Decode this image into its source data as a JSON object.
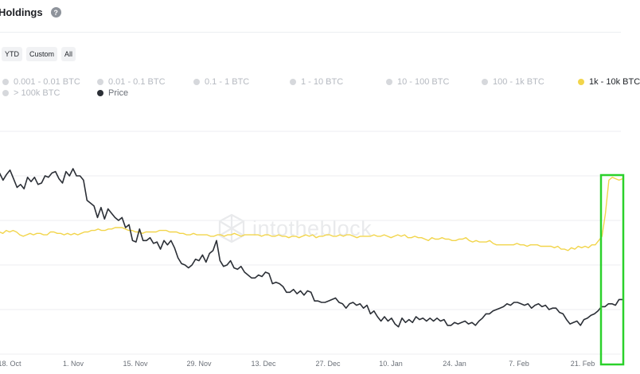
{
  "header": {
    "title": "Holdings",
    "help_icon": "question-circle-icon"
  },
  "range_buttons": [
    "YTD",
    "Custom",
    "All"
  ],
  "legend": [
    {
      "label": "0.001 - 0.01 BTC",
      "active": false,
      "color": "#d6d8dc"
    },
    {
      "label": "0.01 - 0.1 BTC",
      "active": false,
      "color": "#d6d8dc"
    },
    {
      "label": "0.1 - 1 BTC",
      "active": false,
      "color": "#d6d8dc"
    },
    {
      "label": "1 - 10 BTC",
      "active": false,
      "color": "#d6d8dc"
    },
    {
      "label": "10 - 100 BTC",
      "active": false,
      "color": "#d6d8dc"
    },
    {
      "label": "100 - 1k BTC",
      "active": false,
      "color": "#d6d8dc"
    },
    {
      "label": "1k - 10k BTC",
      "active": true,
      "color": "#f2d54b"
    },
    {
      "label": "> 100k BTC",
      "active": false,
      "color": "#d6d8dc"
    },
    {
      "label": "Price",
      "active": true,
      "color": "#2b2f36"
    }
  ],
  "watermark": "intotheblock",
  "highlight_color": "#2bd12b",
  "chart_data": {
    "type": "line",
    "x_tick_labels": [
      "18. Oct",
      "1. Nov",
      "15. Nov",
      "29. Nov",
      "13. Dec",
      "27. Dec",
      "10. Jan",
      "24. Jan",
      "7. Feb",
      "21. Feb"
    ],
    "grid": true,
    "series": [
      {
        "name": "Price",
        "color": "#2b2f36",
        "values": [
          63,
          71,
          66,
          70,
          73,
          67,
          61,
          63,
          60,
          68,
          65,
          68,
          63,
          64,
          69,
          68,
          71,
          72,
          67,
          64,
          72,
          69,
          74,
          69,
          69,
          66,
          52,
          50,
          48,
          40,
          47,
          39,
          46,
          43,
          40,
          38,
          40,
          33,
          35,
          24,
          23,
          32,
          24,
          24,
          26,
          22,
          23,
          18,
          24,
          21,
          24,
          19,
          12,
          8,
          7,
          5,
          7,
          11,
          10,
          14,
          9,
          15,
          17,
          24,
          10,
          6,
          7,
          10,
          5,
          4,
          6,
          2,
          0,
          -2,
          -2,
          0,
          -1,
          2,
          1,
          -6,
          -5,
          -6,
          -8,
          -12,
          -12,
          -10,
          -13,
          -11,
          -14,
          -11,
          -12,
          -18,
          -18,
          -19,
          -19,
          -18,
          -17,
          -16,
          -19,
          -20,
          -23,
          -20,
          -19,
          -21,
          -20,
          -23,
          -21,
          -27,
          -25,
          -29,
          -32,
          -29,
          -32,
          -30,
          -34,
          -36,
          -30,
          -33,
          -31,
          -33,
          -29,
          -31,
          -30,
          -32,
          -30,
          -32,
          -30,
          -32,
          -31,
          -35,
          -35,
          -33,
          -34,
          -33,
          -32,
          -34,
          -33,
          -35,
          -32,
          -30,
          -27,
          -27,
          -25,
          -24,
          -23,
          -22,
          -20,
          -21,
          -19,
          -19,
          -20,
          -21,
          -20,
          -23,
          -21,
          -20,
          -22,
          -21,
          -24,
          -23,
          -23,
          -26,
          -27,
          -31,
          -34,
          -33,
          -32,
          -35,
          -31,
          -30,
          -28,
          -27,
          -25,
          -22,
          -22,
          -20,
          -20,
          -21,
          -17,
          -17
        ]
      },
      {
        "name": "1k - 10k BTC",
        "color": "#f2d54b",
        "values": [
          29,
          30,
          29,
          31,
          30,
          31,
          30,
          28,
          27,
          28,
          29,
          28,
          29,
          29,
          28,
          28,
          30,
          30,
          29,
          29,
          28,
          29,
          28,
          29,
          28,
          29,
          30,
          30,
          31,
          31,
          32,
          31,
          31,
          32,
          32,
          33,
          33,
          33,
          32,
          31,
          31,
          30,
          30,
          29,
          30,
          30,
          30,
          30,
          31,
          31,
          31,
          30,
          30,
          30,
          29,
          29,
          28,
          28,
          29,
          28,
          28,
          28,
          28,
          27,
          27,
          28,
          28,
          27,
          28,
          28,
          29,
          28,
          27,
          28,
          28,
          28,
          28,
          28,
          27,
          28,
          28,
          27,
          27,
          28,
          27,
          27,
          26,
          27,
          27,
          26,
          27,
          28,
          27,
          28,
          26,
          27,
          27,
          28,
          28,
          27,
          27,
          28,
          27,
          28,
          28,
          27,
          26,
          27,
          27,
          27,
          27,
          28,
          27,
          27,
          28,
          27,
          26,
          27,
          28,
          27,
          28,
          26,
          26,
          27,
          26,
          26,
          25,
          24,
          26,
          25,
          25,
          26,
          25,
          25,
          24,
          24,
          25,
          25,
          26,
          24,
          23,
          24,
          23,
          23,
          23,
          24,
          22,
          21,
          21,
          21,
          21,
          21,
          21,
          22,
          21,
          21,
          20,
          21,
          21,
          21,
          20,
          20,
          20,
          20,
          19,
          20,
          18,
          18,
          17,
          19,
          18,
          20,
          19,
          20,
          19,
          21,
          21,
          24,
          27,
          43,
          66,
          68,
          67,
          66,
          67
        ]
      }
    ]
  }
}
